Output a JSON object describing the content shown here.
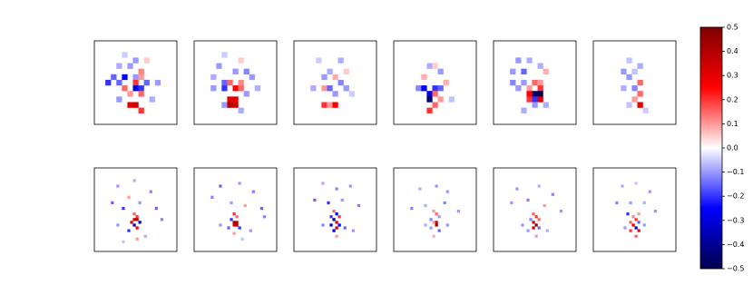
{
  "chart_data": {
    "type": "heatmap-grid",
    "colormap": [
      "#00004c",
      "#0000ff",
      "#ffffff",
      "#ff0000",
      "#7f0000"
    ],
    "panels": [
      {
        "xlim": [
          0,
          15
        ],
        "ylim": [
          0,
          15
        ],
        "cells": [
          [
            5,
            2,
            -0.05
          ],
          [
            7,
            3,
            -0.1
          ],
          [
            9,
            3,
            0.05
          ],
          [
            4,
            4,
            -0.08
          ],
          [
            6,
            4,
            -0.1
          ],
          [
            8,
            5,
            0.12
          ],
          [
            3,
            6,
            -0.15
          ],
          [
            5,
            6,
            -0.25
          ],
          [
            7,
            6,
            -0.1
          ],
          [
            8,
            6,
            0.1
          ],
          [
            2,
            7,
            -0.2
          ],
          [
            4,
            7,
            -0.15
          ],
          [
            7,
            7,
            0.2
          ],
          [
            9,
            7,
            -0.15
          ],
          [
            5,
            8,
            0.15
          ],
          [
            7,
            8,
            -0.3
          ],
          [
            8,
            8,
            -0.2
          ],
          [
            6,
            9,
            0.1
          ],
          [
            8,
            9,
            0.15
          ],
          [
            4,
            10,
            -0.1
          ],
          [
            6,
            11,
            0.3
          ],
          [
            7,
            11,
            0.35
          ],
          [
            8,
            12,
            0.2
          ],
          [
            10,
            10,
            -0.08
          ],
          [
            11,
            7,
            -0.1
          ]
        ]
      },
      {
        "xlim": [
          0,
          15
        ],
        "ylim": [
          0,
          15
        ],
        "cells": [
          [
            5,
            2,
            -0.05
          ],
          [
            8,
            3,
            0.05
          ],
          [
            4,
            4,
            -0.1
          ],
          [
            7,
            5,
            -0.1
          ],
          [
            9,
            5,
            -0.12
          ],
          [
            3,
            6,
            -0.08
          ],
          [
            5,
            7,
            -0.15
          ],
          [
            6,
            7,
            0.15
          ],
          [
            8,
            7,
            0.12
          ],
          [
            3,
            8,
            -0.1
          ],
          [
            5,
            8,
            -0.2
          ],
          [
            7,
            8,
            0.25
          ],
          [
            8,
            8,
            0.15
          ],
          [
            9,
            9,
            -0.1
          ],
          [
            6,
            10,
            0.3
          ],
          [
            7,
            10,
            0.3
          ],
          [
            5,
            11,
            -0.1
          ],
          [
            6,
            11,
            0.4
          ],
          [
            7,
            11,
            0.35
          ],
          [
            8,
            12,
            -0.08
          ],
          [
            10,
            6,
            -0.1
          ],
          [
            11,
            8,
            -0.08
          ]
        ]
      },
      {
        "xlim": [
          0,
          15
        ],
        "ylim": [
          0,
          15
        ],
        "cells": [
          [
            4,
            3,
            -0.05
          ],
          [
            8,
            3,
            -0.08
          ],
          [
            6,
            5,
            -0.08
          ],
          [
            9,
            5,
            0.05
          ],
          [
            5,
            6,
            -0.1
          ],
          [
            7,
            6,
            0.08
          ],
          [
            8,
            7,
            -0.12
          ],
          [
            3,
            8,
            -0.08
          ],
          [
            5,
            8,
            0.1
          ],
          [
            6,
            8,
            -0.15
          ],
          [
            9,
            8,
            -0.1
          ],
          [
            7,
            9,
            -0.1
          ],
          [
            5,
            11,
            0.2
          ],
          [
            6,
            11,
            0.1
          ],
          [
            7,
            11,
            0.25
          ],
          [
            10,
            9,
            -0.05
          ]
        ]
      },
      {
        "xlim": [
          0,
          15
        ],
        "ylim": [
          0,
          15
        ],
        "cells": [
          [
            6,
            4,
            -0.08
          ],
          [
            7,
            4,
            0.05
          ],
          [
            5,
            6,
            0.08
          ],
          [
            8,
            5,
            -0.1
          ],
          [
            4,
            8,
            -0.12
          ],
          [
            5,
            8,
            -0.25
          ],
          [
            7,
            8,
            -0.2
          ],
          [
            8,
            8,
            -0.15
          ],
          [
            6,
            9,
            -0.3
          ],
          [
            7,
            9,
            0.15
          ],
          [
            6,
            10,
            -0.45
          ],
          [
            8,
            10,
            0.1
          ],
          [
            7,
            11,
            0.15
          ],
          [
            6,
            12,
            0.2
          ],
          [
            9,
            7,
            0.08
          ],
          [
            10,
            10,
            -0.06
          ]
        ]
      },
      {
        "xlim": [
          0,
          15
        ],
        "ylim": [
          0,
          15
        ],
        "cells": [
          [
            4,
            3,
            -0.1
          ],
          [
            6,
            3,
            -0.08
          ],
          [
            8,
            4,
            -0.08
          ],
          [
            3,
            5,
            -0.1
          ],
          [
            5,
            5,
            -0.15
          ],
          [
            9,
            5,
            0.08
          ],
          [
            3,
            7,
            -0.12
          ],
          [
            5,
            7,
            -0.1
          ],
          [
            7,
            7,
            0.15
          ],
          [
            8,
            7,
            0.1
          ],
          [
            4,
            8,
            -0.1
          ],
          [
            6,
            8,
            0.1
          ],
          [
            8,
            8,
            0.2
          ],
          [
            7,
            9,
            -0.45
          ],
          [
            8,
            9,
            -0.5
          ],
          [
            6,
            9,
            0.25
          ],
          [
            6,
            10,
            0.2
          ],
          [
            7,
            10,
            -0.2
          ],
          [
            8,
            10,
            0.3
          ],
          [
            7,
            11,
            -0.1
          ],
          [
            9,
            11,
            -0.08
          ],
          [
            5,
            12,
            -0.08
          ]
        ]
      },
      {
        "xlim": [
          0,
          15
        ],
        "ylim": [
          0,
          15
        ],
        "cells": [
          [
            6,
            3,
            -0.06
          ],
          [
            8,
            4,
            -0.08
          ],
          [
            5,
            5,
            -0.1
          ],
          [
            7,
            5,
            -0.06
          ],
          [
            6,
            6,
            -0.1
          ],
          [
            8,
            7,
            0.15
          ],
          [
            5,
            8,
            -0.08
          ],
          [
            7,
            8,
            -0.12
          ],
          [
            8,
            9,
            0.15
          ],
          [
            7,
            10,
            0.1
          ],
          [
            8,
            11,
            0.3
          ],
          [
            6,
            11,
            -0.06
          ],
          [
            9,
            12,
            -0.05
          ]
        ]
      },
      {
        "xlim": [
          0,
          30
        ],
        "ylim": [
          0,
          30
        ],
        "cells": [
          [
            8,
            6,
            -0.1
          ],
          [
            14,
            4,
            -0.08
          ],
          [
            20,
            8,
            -0.12
          ],
          [
            6,
            12,
            -0.15
          ],
          [
            10,
            14,
            -0.2
          ],
          [
            12,
            10,
            0.1
          ],
          [
            16,
            12,
            -0.1
          ],
          [
            22,
            14,
            -0.15
          ],
          [
            24,
            18,
            -0.12
          ],
          [
            14,
            16,
            0.15
          ],
          [
            15,
            17,
            0.2
          ],
          [
            14,
            18,
            0.35
          ],
          [
            15,
            18,
            0.4
          ],
          [
            13,
            19,
            0.3
          ],
          [
            16,
            19,
            -0.3
          ],
          [
            14,
            20,
            -0.35
          ],
          [
            15,
            21,
            0.25
          ],
          [
            12,
            22,
            -0.2
          ],
          [
            8,
            20,
            -0.1
          ],
          [
            18,
            24,
            -0.08
          ],
          [
            15,
            25,
            0.1
          ],
          [
            10,
            26,
            -0.06
          ]
        ]
      },
      {
        "xlim": [
          0,
          30
        ],
        "ylim": [
          0,
          30
        ],
        "cells": [
          [
            9,
            6,
            -0.15
          ],
          [
            16,
            5,
            -0.1
          ],
          [
            21,
            8,
            -0.12
          ],
          [
            6,
            10,
            -0.12
          ],
          [
            13,
            12,
            -0.1
          ],
          [
            18,
            13,
            0.1
          ],
          [
            24,
            14,
            -0.15
          ],
          [
            25,
            17,
            -0.12
          ],
          [
            14,
            16,
            0.2
          ],
          [
            15,
            17,
            0.15
          ],
          [
            13,
            18,
            -0.2
          ],
          [
            14,
            19,
            0.4
          ],
          [
            15,
            19,
            0.35
          ],
          [
            14,
            20,
            0.3
          ],
          [
            15,
            20,
            0.45
          ],
          [
            16,
            21,
            -0.2
          ],
          [
            12,
            21,
            -0.15
          ],
          [
            9,
            20,
            -0.1
          ],
          [
            20,
            22,
            -0.1
          ],
          [
            14,
            23,
            0.1
          ],
          [
            17,
            25,
            -0.06
          ]
        ]
      },
      {
        "xlim": [
          0,
          30
        ],
        "ylim": [
          0,
          30
        ],
        "cells": [
          [
            10,
            5,
            -0.08
          ],
          [
            15,
            7,
            -0.12
          ],
          [
            20,
            6,
            -0.1
          ],
          [
            7,
            11,
            -0.15
          ],
          [
            12,
            12,
            -0.2
          ],
          [
            17,
            11,
            -0.1
          ],
          [
            23,
            13,
            -0.12
          ],
          [
            14,
            15,
            0.15
          ],
          [
            15,
            16,
            -0.25
          ],
          [
            13,
            17,
            -0.2
          ],
          [
            16,
            17,
            0.2
          ],
          [
            14,
            18,
            -0.45
          ],
          [
            15,
            19,
            0.3
          ],
          [
            13,
            20,
            -0.3
          ],
          [
            16,
            20,
            -0.25
          ],
          [
            15,
            21,
            0.35
          ],
          [
            14,
            22,
            -0.3
          ],
          [
            18,
            21,
            -0.15
          ],
          [
            10,
            20,
            -0.12
          ],
          [
            15,
            24,
            0.1
          ],
          [
            21,
            22,
            -0.1
          ]
        ]
      },
      {
        "xlim": [
          0,
          30
        ],
        "ylim": [
          0,
          30
        ],
        "cells": [
          [
            9,
            7,
            -0.08
          ],
          [
            15,
            6,
            -0.1
          ],
          [
            19,
            8,
            -0.1
          ],
          [
            6,
            14,
            -0.12
          ],
          [
            11,
            13,
            -0.08
          ],
          [
            18,
            12,
            -0.12
          ],
          [
            23,
            15,
            -0.1
          ],
          [
            14,
            15,
            0.1
          ],
          [
            15,
            16,
            0.15
          ],
          [
            13,
            18,
            -0.12
          ],
          [
            16,
            17,
            -0.1
          ],
          [
            15,
            19,
            0.35
          ],
          [
            14,
            19,
            0.1
          ],
          [
            15,
            20,
            0.45
          ],
          [
            13,
            21,
            -0.1
          ],
          [
            16,
            22,
            -0.15
          ],
          [
            11,
            20,
            -0.08
          ],
          [
            19,
            20,
            -0.1
          ],
          [
            14,
            24,
            0.08
          ]
        ]
      },
      {
        "xlim": [
          0,
          30
        ],
        "ylim": [
          0,
          30
        ],
        "cells": [
          [
            8,
            7,
            -0.1
          ],
          [
            16,
            6,
            -0.08
          ],
          [
            21,
            9,
            -0.12
          ],
          [
            6,
            12,
            -0.1
          ],
          [
            12,
            11,
            -0.12
          ],
          [
            18,
            13,
            0.1
          ],
          [
            24,
            15,
            -0.1
          ],
          [
            14,
            16,
            0.15
          ],
          [
            15,
            17,
            0.2
          ],
          [
            13,
            18,
            -0.12
          ],
          [
            16,
            18,
            0.15
          ],
          [
            14,
            19,
            0.3
          ],
          [
            15,
            20,
            0.45
          ],
          [
            14,
            21,
            0.35
          ],
          [
            16,
            21,
            -0.15
          ],
          [
            12,
            22,
            -0.1
          ],
          [
            10,
            20,
            -0.1
          ],
          [
            19,
            22,
            -0.08
          ],
          [
            15,
            24,
            0.1
          ]
        ]
      },
      {
        "xlim": [
          0,
          30
        ],
        "ylim": [
          0,
          30
        ],
        "cells": [
          [
            10,
            6,
            -0.08
          ],
          [
            15,
            5,
            -0.06
          ],
          [
            20,
            8,
            -0.1
          ],
          [
            8,
            12,
            -0.12
          ],
          [
            13,
            12,
            -0.1
          ],
          [
            18,
            12,
            -0.08
          ],
          [
            22,
            15,
            -0.1
          ],
          [
            12,
            16,
            -0.2
          ],
          [
            16,
            16,
            0.1
          ],
          [
            14,
            17,
            0.12
          ],
          [
            15,
            18,
            0.2
          ],
          [
            13,
            19,
            0.15
          ],
          [
            16,
            19,
            -0.15
          ],
          [
            14,
            20,
            0.3
          ],
          [
            15,
            21,
            -0.3
          ],
          [
            13,
            22,
            0.2
          ],
          [
            16,
            22,
            0.25
          ],
          [
            11,
            21,
            -0.1
          ],
          [
            18,
            20,
            -0.1
          ],
          [
            15,
            24,
            0.15
          ]
        ]
      }
    ],
    "colorbar": {
      "clim": [
        -0.5,
        0.5
      ],
      "ticks": [
        {
          "value": -0.5,
          "label": "−0.5"
        },
        {
          "value": -0.4,
          "label": "−0.4"
        },
        {
          "value": -0.3,
          "label": "−0.3"
        },
        {
          "value": -0.2,
          "label": "−0.2"
        },
        {
          "value": -0.1,
          "label": "−0.1"
        },
        {
          "value": 0,
          "label": "0.0"
        },
        0.1,
        0.2,
        0.3,
        0.4,
        0.5
      ]
    }
  }
}
